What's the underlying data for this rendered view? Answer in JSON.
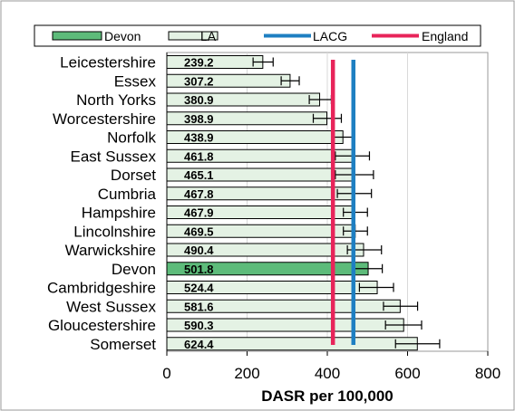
{
  "chart_data": {
    "type": "bar",
    "orientation": "horizontal",
    "categories": [
      "Leicestershire",
      "Essex",
      "North Yorks",
      "Worcestershire",
      "Norfolk",
      "East Sussex",
      "Dorset",
      "Cumbria",
      "Hampshire",
      "Lincolnshire",
      "Warwickshire",
      "Devon",
      "Cambridgeshire",
      "West Sussex",
      "Gloucestershire",
      "Somerset"
    ],
    "values": [
      239.2,
      307.2,
      380.9,
      398.9,
      438.9,
      461.8,
      465.1,
      467.8,
      467.9,
      469.5,
      490.4,
      501.8,
      524.4,
      581.6,
      590.3,
      624.4
    ],
    "value_labels": [
      "239.2",
      "307.2",
      "380.9",
      "398.9",
      "438.9",
      "461.8",
      "465.1",
      "467.8",
      "467.9",
      "469.5",
      "490.4",
      "501.8",
      "524.4",
      "581.6",
      "590.3",
      "624.4"
    ],
    "error_low": [
      215,
      285,
      355,
      365,
      415,
      420,
      420,
      425,
      440,
      440,
      450,
      465,
      480,
      540,
      545,
      570
    ],
    "error_high": [
      265,
      330,
      410,
      435,
      468,
      505,
      515,
      510,
      500,
      500,
      535,
      537,
      565,
      625,
      635,
      680
    ],
    "highlight_category": "Devon",
    "reference_lines": [
      {
        "name": "LACG",
        "value": 465,
        "color": "#1e7fc2"
      },
      {
        "name": "England",
        "value": 414,
        "color": "#e8245a"
      }
    ],
    "legend": [
      {
        "name": "Devon",
        "kind": "box",
        "fill": "#5dbb7a"
      },
      {
        "name": "LA",
        "kind": "box",
        "fill": "#e4f2e4"
      },
      {
        "name": "LACG",
        "kind": "line",
        "color": "#1e7fc2"
      },
      {
        "name": "England",
        "kind": "line",
        "color": "#e8245a"
      }
    ],
    "legend_position": "top",
    "xlabel": "DASR per 100,000",
    "xlim": [
      0,
      800
    ],
    "xticks": [
      0,
      200,
      400,
      600,
      800
    ],
    "grid": "vertical",
    "colors": {
      "bar": "#e4f2e4",
      "highlight": "#5dbb7a",
      "grid": "#d9d9d9"
    }
  }
}
